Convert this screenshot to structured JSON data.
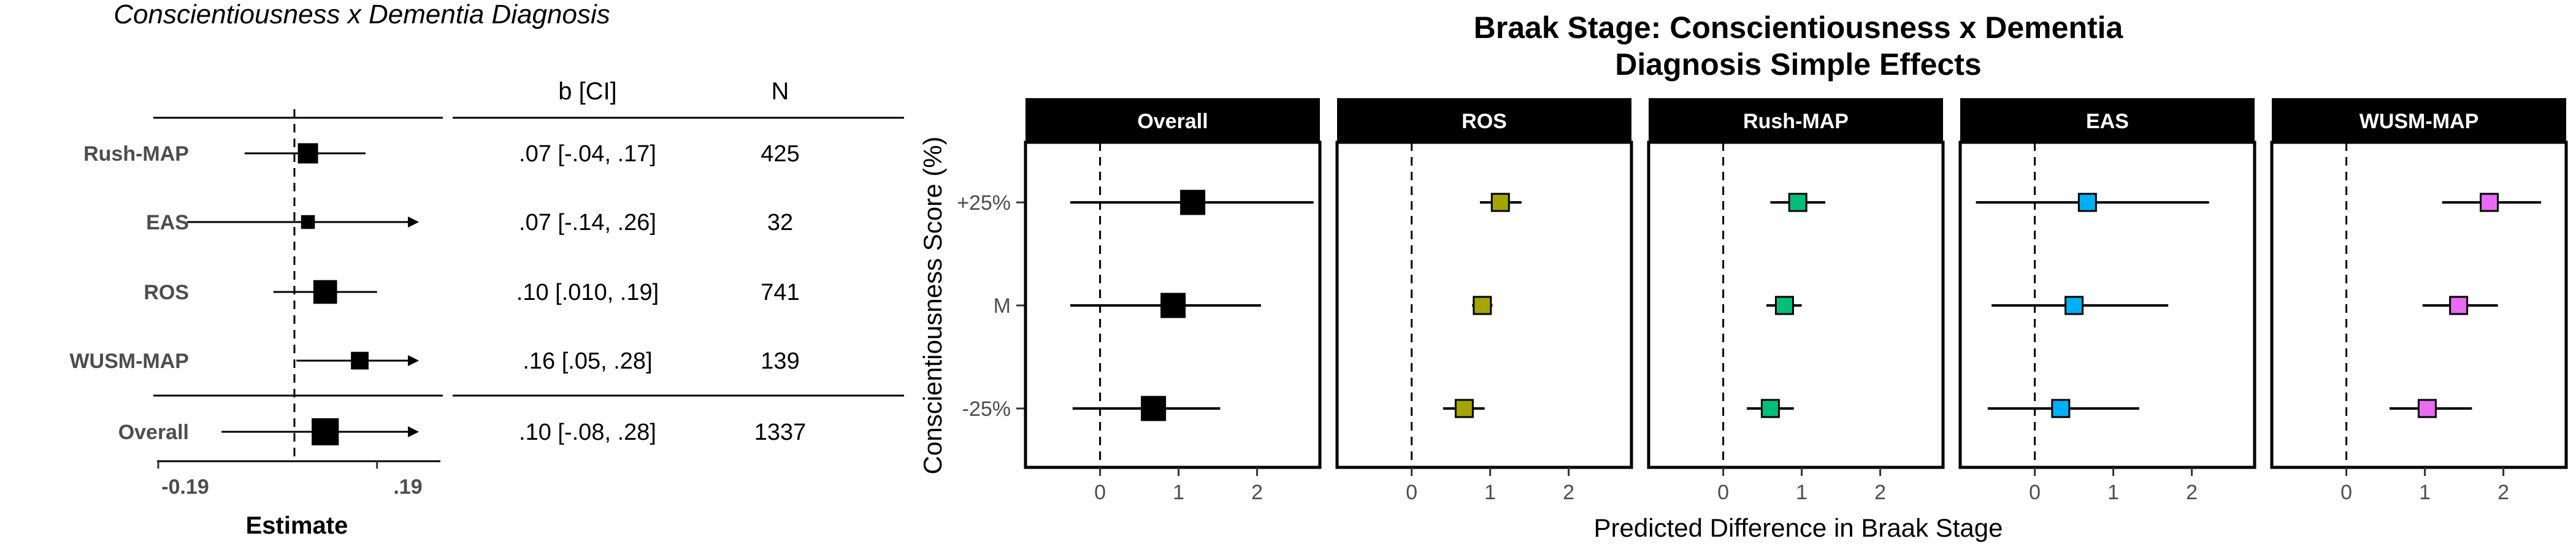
{
  "chart_data": [
    {
      "type": "forest",
      "title": "Conscientiousness x Dementia Diagnosis",
      "xlabel": "Estimate",
      "x_ticks": [
        "-0.19",
        ".19"
      ],
      "col_headers": {
        "ci": "b [CI]",
        "n": "N"
      },
      "rows": [
        {
          "label": "Rush-MAP",
          "est": 0.07,
          "lo": -0.04,
          "hi": 0.17,
          "ci": ".07 [-.04, .17]",
          "n": "425",
          "size": 3
        },
        {
          "label": "EAS",
          "est": 0.07,
          "lo": -0.14,
          "hi": 0.26,
          "ci": ".07 [-.14, .26]",
          "n": "32",
          "size": 1.5
        },
        {
          "label": "ROS",
          "est": 0.1,
          "lo": 0.01,
          "hi": 0.19,
          "ci": ".10 [.010, .19]",
          "n": "741",
          "size": 3.8
        },
        {
          "label": "WUSM-MAP",
          "est": 0.16,
          "lo": 0.05,
          "hi": 0.28,
          "ci": ".16 [.05, .28]",
          "n": "139",
          "size": 2.4
        },
        {
          "label": "Overall",
          "est": 0.1,
          "lo": -0.08,
          "hi": 0.28,
          "ci": ".10 [-.08, .28]",
          "n": "1337",
          "size": 4.6
        }
      ]
    },
    {
      "type": "faceted-dot-errorbar",
      "title_lines": [
        "Braak Stage: Conscientiousness x Dementia",
        "Diagnosis Simple Effects"
      ],
      "xlabel": "Predicted Difference in Braak Stage",
      "ylabel": "Conscientiousness Score (%)",
      "y_categories": [
        "+25%",
        "M",
        "-25%"
      ],
      "x_ticks": [
        "0",
        "1",
        "2"
      ],
      "xlim": [
        -0.95,
        2.8
      ],
      "facets": [
        {
          "name": "Overall",
          "color": "#000000",
          "points": [
            {
              "y": "+25%",
              "est": 1.18,
              "lo": -0.38,
              "hi": 2.72
            },
            {
              "y": "M",
              "est": 0.93,
              "lo": -0.38,
              "hi": 2.05
            },
            {
              "y": "-25%",
              "est": 0.68,
              "lo": -0.35,
              "hi": 1.53
            }
          ]
        },
        {
          "name": "ROS",
          "color": "#a3a500",
          "points": [
            {
              "y": "+25%",
              "est": 1.13,
              "lo": 0.87,
              "hi": 1.4
            },
            {
              "y": "M",
              "est": 0.9,
              "lo": 0.77,
              "hi": 1.03
            },
            {
              "y": "-25%",
              "est": 0.67,
              "lo": 0.4,
              "hi": 0.93
            }
          ]
        },
        {
          "name": "Rush-MAP",
          "color": "#00bf7d",
          "points": [
            {
              "y": "+25%",
              "est": 0.95,
              "lo": 0.6,
              "hi": 1.3
            },
            {
              "y": "M",
              "est": 0.78,
              "lo": 0.55,
              "hi": 1.0
            },
            {
              "y": "-25%",
              "est": 0.6,
              "lo": 0.3,
              "hi": 0.9
            }
          ]
        },
        {
          "name": "EAS",
          "color": "#00b0f6",
          "points": [
            {
              "y": "+25%",
              "est": 0.67,
              "lo": -0.75,
              "hi": 2.22
            },
            {
              "y": "M",
              "est": 0.5,
              "lo": -0.55,
              "hi": 1.7
            },
            {
              "y": "-25%",
              "est": 0.33,
              "lo": -0.6,
              "hi": 1.33
            }
          ]
        },
        {
          "name": "WUSM-MAP",
          "color": "#e76bf3",
          "points": [
            {
              "y": "+25%",
              "est": 1.82,
              "lo": 1.22,
              "hi": 2.48
            },
            {
              "y": "M",
              "est": 1.43,
              "lo": 0.97,
              "hi": 1.93
            },
            {
              "y": "-25%",
              "est": 1.03,
              "lo": 0.55,
              "hi": 1.6
            }
          ]
        }
      ]
    }
  ]
}
